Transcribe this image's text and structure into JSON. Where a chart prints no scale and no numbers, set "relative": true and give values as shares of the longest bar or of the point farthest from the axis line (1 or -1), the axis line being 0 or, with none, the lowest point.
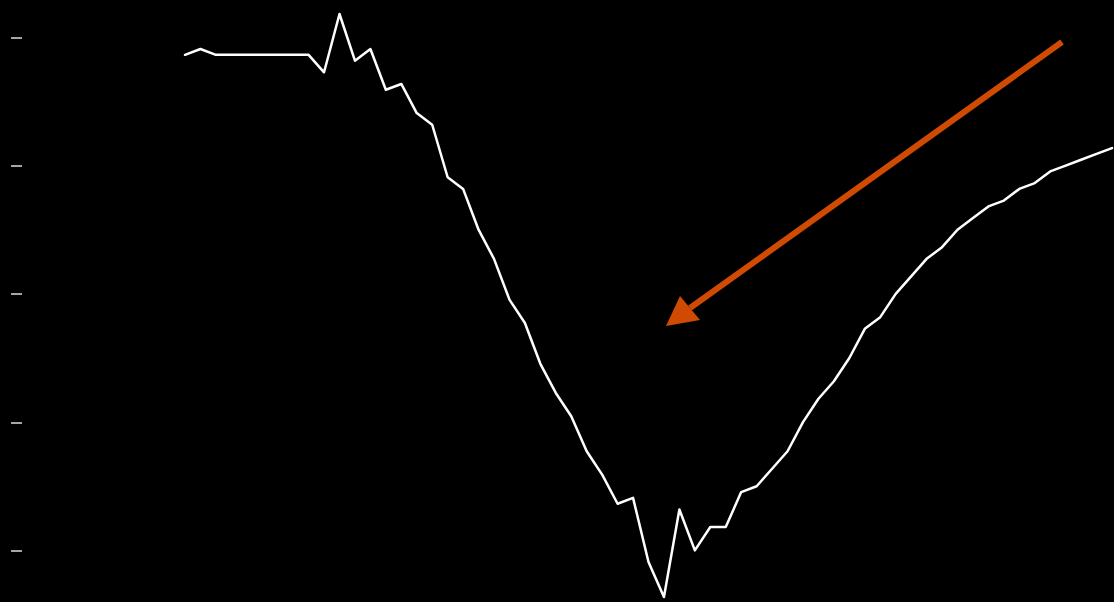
{
  "chart_data": {
    "type": "line",
    "relative": true,
    "categories": [
      null,
      null,
      null,
      null,
      null,
      null,
      null,
      null,
      null,
      null,
      null,
      null,
      null,
      null,
      null,
      null,
      null,
      null,
      null,
      null,
      null,
      null,
      null,
      null,
      null,
      null,
      null,
      null,
      null,
      null,
      null,
      null,
      null,
      null,
      null,
      null,
      null,
      null,
      null,
      null,
      null,
      null,
      null,
      null,
      null,
      null,
      null,
      null,
      null,
      null,
      null,
      null,
      null,
      null,
      null,
      null,
      null,
      null,
      null,
      null,
      null
    ],
    "series": [
      {
        "color": "#ffffff",
        "values": [
          0.93,
          0.94,
          0.93,
          0.93,
          0.93,
          0.93,
          0.93,
          0.93,
          0.93,
          0.9,
          1.0,
          0.92,
          0.94,
          0.87,
          0.88,
          0.83,
          0.81,
          0.72,
          0.7,
          0.63,
          0.58,
          0.51,
          0.47,
          0.4,
          0.35,
          0.31,
          0.25,
          0.21,
          0.16,
          0.17,
          0.06,
          0,
          0.15,
          0.08,
          0.12,
          0.12,
          0.18,
          0.19,
          0.22,
          0.25,
          0.3,
          0.34,
          0.37,
          0.41,
          0.46,
          0.48,
          0.52,
          0.55,
          0.58,
          0.6,
          0.63,
          0.65,
          0.67,
          0.68,
          0.7,
          0.71,
          0.73,
          0.74,
          0.75,
          0.76,
          0.77
        ]
      }
    ],
    "line_style": "solid"
  }
}
